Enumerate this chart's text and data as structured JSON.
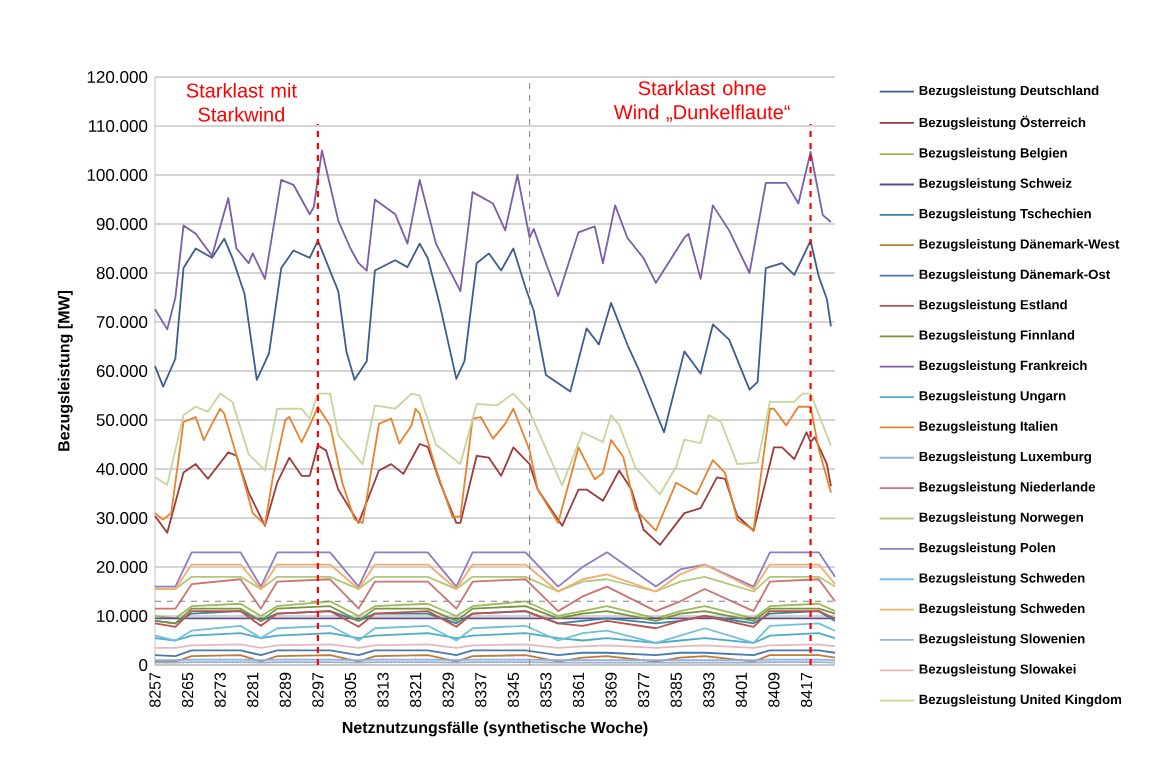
{
  "chart_data": {
    "type": "line",
    "xlabel": "Netznutzungsfälle (synthetische Woche)",
    "ylabel": "Bezugsleistung [MW]",
    "xlim": [
      8257,
      8424
    ],
    "xticks": [
      8257,
      8265,
      8273,
      8281,
      8289,
      8297,
      8305,
      8313,
      8321,
      8329,
      8337,
      8345,
      8353,
      8361,
      8369,
      8377,
      8385,
      8393,
      8401,
      8409,
      8417
    ],
    "ylim": [
      0,
      120000
    ],
    "yticks": [
      {
        "value": 0,
        "label": "0"
      },
      {
        "value": 10000,
        "label": "10.000"
      },
      {
        "value": 20000,
        "label": "20.000"
      },
      {
        "value": 30000,
        "label": "30.000"
      },
      {
        "value": 40000,
        "label": "40.000"
      },
      {
        "value": 50000,
        "label": "50.000"
      },
      {
        "value": 60000,
        "label": "60.000"
      },
      {
        "value": 70000,
        "label": "70.000"
      },
      {
        "value": 80000,
        "label": "80.000"
      },
      {
        "value": 90000,
        "label": "90.000"
      },
      {
        "value": 100000,
        "label": "100.000"
      },
      {
        "value": 110000,
        "label": "110.000"
      },
      {
        "value": 120000,
        "label": "120.000"
      }
    ],
    "grid": "y",
    "legend": "right",
    "x": [
      8257,
      8262,
      8266,
      8278,
      8283,
      8287,
      8300,
      8307,
      8311,
      8324,
      8331,
      8335,
      8348,
      8356,
      8362,
      8368,
      8380,
      8386,
      8392,
      8404,
      8408,
      8420,
      8424
    ],
    "series": [
      {
        "name": "Bezugsleistung Deutschland",
        "color": "#3b5e8c",
        "x": [
          8257,
          8259,
          8262,
          8264,
          8267,
          8271,
          8274,
          8276,
          8279,
          8282,
          8285,
          8288,
          8291,
          8295,
          8297,
          8302,
          8304,
          8306,
          8309,
          8311,
          8316,
          8319,
          8322,
          8324,
          8327,
          8331,
          8333,
          8336,
          8339,
          8342,
          8345,
          8348,
          8350,
          8353,
          8359,
          8363,
          8366,
          8369,
          8373,
          8376,
          8382,
          8387,
          8391,
          8394,
          8398,
          8403,
          8405,
          8407,
          8411,
          8414,
          8418,
          8420,
          8422,
          8423
        ],
        "values": [
          61000,
          56800,
          62500,
          81000,
          85000,
          83100,
          87000,
          83100,
          75700,
          58200,
          63600,
          81000,
          84600,
          83100,
          86600,
          76300,
          64000,
          58200,
          62000,
          80500,
          82600,
          81200,
          86000,
          83000,
          73300,
          58400,
          62000,
          82000,
          84000,
          80500,
          85000,
          77000,
          72300,
          59200,
          55800,
          68700,
          65400,
          73900,
          65400,
          59900,
          47500,
          64000,
          59500,
          69500,
          66400,
          56200,
          57800,
          81000,
          82000,
          79600,
          86600,
          79300,
          74700,
          69100
        ]
      },
      {
        "name": "Bezugsleistung Österreich",
        "color": "#9b3b3a",
        "x": [
          8257,
          8260,
          8264,
          8267,
          8270,
          8275,
          8277,
          8280,
          8284,
          8287,
          8290,
          8293,
          8295,
          8297,
          8299,
          8302,
          8307,
          8312,
          8315,
          8318,
          8322,
          8324,
          8327,
          8331,
          8332,
          8336,
          8339,
          8342,
          8345,
          8349,
          8351,
          8357,
          8361,
          8363,
          8367,
          8371,
          8374,
          8377,
          8381,
          8387,
          8391,
          8395,
          8397,
          8400,
          8404,
          8409,
          8411,
          8414,
          8417,
          8418,
          8419,
          8422,
          8423
        ],
        "values": [
          30400,
          27000,
          39300,
          41000,
          38000,
          43400,
          42700,
          35200,
          28400,
          37200,
          42300,
          38600,
          38600,
          44800,
          43800,
          35800,
          29000,
          39700,
          41000,
          39000,
          45100,
          44500,
          37200,
          29000,
          29000,
          42700,
          42300,
          38600,
          44400,
          41000,
          35800,
          28400,
          35800,
          35800,
          33500,
          39700,
          35800,
          27600,
          24500,
          31000,
          32000,
          38300,
          38000,
          30400,
          27400,
          44400,
          44400,
          42000,
          47500,
          45500,
          46500,
          41000,
          36500
        ]
      },
      {
        "name": "Bezugsleistung Belgien",
        "color": "#9bbb59",
        "values": [
          10000,
          9500,
          12000,
          12500,
          10000,
          12000,
          13000,
          10000,
          12000,
          12500,
          10000,
          12000,
          13000,
          10000,
          11000,
          12000,
          9500,
          11000,
          12000,
          9500,
          12000,
          12500,
          11000
        ]
      },
      {
        "name": "Bezugsleistung Schweiz",
        "color": "#5f4b8b",
        "values": [
          9500,
          9500,
          9500,
          9500,
          9500,
          9500,
          9500,
          9500,
          9500,
          9500,
          9500,
          9500,
          9500,
          9500,
          9500,
          9500,
          9500,
          9500,
          9500,
          9500,
          9500,
          9500,
          9500
        ]
      },
      {
        "name": "Bezugsleistung Tschechien",
        "color": "#31859c",
        "values": [
          9000,
          8500,
          10500,
          11000,
          9000,
          10500,
          11000,
          9000,
          10500,
          10500,
          8500,
          10500,
          11000,
          8500,
          9000,
          9500,
          8500,
          9000,
          10000,
          8500,
          10500,
          11000,
          9000
        ]
      },
      {
        "name": "Bezugsleistung Dänemark-West",
        "color": "#c07a35",
        "values": [
          700,
          700,
          1800,
          2000,
          700,
          1800,
          2000,
          700,
          1800,
          2000,
          700,
          1800,
          2000,
          700,
          1500,
          1800,
          700,
          1500,
          1800,
          700,
          2000,
          2000,
          1500
        ]
      },
      {
        "name": "Bezugsleistung Dänemark-Ost",
        "color": "#4a78b0",
        "values": [
          2000,
          1800,
          3000,
          3000,
          2000,
          3000,
          3000,
          2000,
          3000,
          3000,
          2000,
          3000,
          3000,
          2000,
          2500,
          2500,
          2000,
          2500,
          2500,
          2000,
          3000,
          3000,
          2500
        ]
      },
      {
        "name": "Bezugsleistung Estland",
        "color": "#c0504d",
        "values": [
          8500,
          7800,
          11000,
          11000,
          8000,
          10500,
          11000,
          7800,
          10500,
          11000,
          7800,
          10500,
          11000,
          8500,
          8000,
          9000,
          7500,
          9000,
          10000,
          7800,
          11000,
          11000,
          9500
        ]
      },
      {
        "name": "Bezugsleistung Finnland",
        "color": "#77933c",
        "values": [
          9000,
          8500,
          11500,
          11500,
          9000,
          11500,
          12000,
          9000,
          11500,
          11500,
          9000,
          11500,
          12000,
          9500,
          10500,
          11000,
          9000,
          10500,
          11000,
          9000,
          11500,
          11500,
          10500
        ]
      },
      {
        "name": "Bezugsleistung Frankreich",
        "color": "#7a5ea8",
        "x": [
          8257,
          8260,
          8262,
          8264,
          8267,
          8271,
          8275,
          8277,
          8280,
          8281,
          8284,
          8288,
          8291,
          8295,
          8296,
          8298,
          8302,
          8305,
          8307,
          8309,
          8311,
          8316,
          8319,
          8322,
          8326,
          8332,
          8335,
          8340,
          8343,
          8346,
          8349,
          8350,
          8353,
          8356,
          8361,
          8365,
          8367,
          8370,
          8373,
          8377,
          8380,
          8387,
          8388,
          8391,
          8394,
          8398,
          8403,
          8407,
          8412,
          8415,
          8418,
          8421,
          8423
        ],
        "values": [
          72600,
          68500,
          75000,
          89700,
          88000,
          83500,
          95300,
          85000,
          82000,
          84000,
          78800,
          99000,
          98000,
          92000,
          93500,
          105000,
          90700,
          85000,
          82000,
          80500,
          95000,
          92000,
          86000,
          99000,
          86000,
          76300,
          96500,
          94200,
          88700,
          100000,
          87200,
          89000,
          82000,
          75300,
          88300,
          89500,
          82000,
          93800,
          87200,
          83000,
          78000,
          87200,
          88000,
          78800,
          93800,
          88700,
          80000,
          98400,
          98400,
          94200,
          104700,
          91800,
          90400
        ]
      },
      {
        "name": "Bezugsleistung Ungarn",
        "color": "#4bacc6",
        "values": [
          5500,
          5000,
          6000,
          6500,
          5500,
          6000,
          6500,
          5500,
          6000,
          6500,
          5500,
          6000,
          6500,
          5500,
          5000,
          5500,
          4500,
          5000,
          5500,
          4500,
          6000,
          6500,
          5500
        ]
      },
      {
        "name": "Bezugsleistung Italien",
        "color": "#e8822e",
        "x": [
          8257,
          8259,
          8261,
          8264,
          8267,
          8269,
          8271,
          8273,
          8274,
          8278,
          8281,
          8284,
          8286,
          8289,
          8290,
          8293,
          8295,
          8297,
          8300,
          8303,
          8306,
          8308,
          8312,
          8315,
          8317,
          8320,
          8321,
          8322,
          8326,
          8330,
          8332,
          8335,
          8337,
          8340,
          8343,
          8345,
          8349,
          8351,
          8356,
          8361,
          8365,
          8367,
          8369,
          8372,
          8375,
          8380,
          8385,
          8390,
          8394,
          8397,
          8400,
          8404,
          8408,
          8409,
          8412,
          8415,
          8418,
          8420,
          8423
        ],
        "values": [
          31000,
          29700,
          31000,
          49600,
          50600,
          45900,
          49200,
          52300,
          51300,
          40000,
          31000,
          28600,
          38600,
          50000,
          50600,
          45500,
          48900,
          52700,
          48900,
          37200,
          29700,
          29000,
          49200,
          50300,
          45200,
          48900,
          52300,
          51300,
          40000,
          30300,
          30300,
          50300,
          50600,
          46200,
          49200,
          52300,
          43800,
          35800,
          29000,
          44400,
          37900,
          39200,
          45900,
          42500,
          31700,
          27400,
          37200,
          34800,
          41800,
          39200,
          29600,
          27600,
          52300,
          52300,
          48900,
          52700,
          52700,
          44100,
          35200
        ]
      },
      {
        "name": "Bezugsleistung Luxemburg",
        "color": "#8db3e2",
        "values": [
          1000,
          1000,
          1100,
          1100,
          1000,
          1100,
          1100,
          1000,
          1100,
          1100,
          1000,
          1100,
          1100,
          1000,
          1000,
          1000,
          1000,
          1000,
          1000,
          1000,
          1100,
          1100,
          1000
        ]
      },
      {
        "name": "Bezugsleistung Niederlande",
        "color": "#cd7371",
        "values": [
          11500,
          11500,
          16500,
          17500,
          11500,
          17000,
          17500,
          11500,
          17000,
          17000,
          11500,
          17000,
          17500,
          11000,
          14000,
          16000,
          11000,
          13000,
          15500,
          11000,
          17000,
          17500,
          13000
        ]
      },
      {
        "name": "Bezugsleistung Norwegen",
        "color": "#afc97a",
        "values": [
          15500,
          15500,
          18000,
          18000,
          15500,
          18000,
          18000,
          15500,
          18000,
          18000,
          15500,
          18000,
          18000,
          15000,
          17000,
          17500,
          15000,
          17000,
          18000,
          15000,
          18000,
          18000,
          16000
        ]
      },
      {
        "name": "Bezugsleistung Polen",
        "color": "#8f7cc0",
        "values": [
          16000,
          16000,
          23000,
          23000,
          16000,
          23000,
          23000,
          16000,
          23000,
          23000,
          16000,
          23000,
          23000,
          16000,
          20000,
          23000,
          16000,
          19500,
          20500,
          16000,
          23000,
          23000,
          18000
        ]
      },
      {
        "name": "Bezugsleistung Schweden",
        "color": "#6fc0d8",
        "values": [
          6000,
          5000,
          7000,
          8000,
          5500,
          7500,
          8000,
          5000,
          7500,
          8000,
          5000,
          7500,
          8000,
          5000,
          6500,
          7000,
          4500,
          6000,
          7500,
          4500,
          8000,
          8500,
          7000
        ]
      },
      {
        "name": "Bezugsleistung Schweden",
        "color": "#f9ab6b",
        "values": [
          15500,
          15500,
          20500,
          20500,
          15500,
          20500,
          20500,
          15500,
          20500,
          20500,
          15500,
          20500,
          20500,
          15000,
          17500,
          18500,
          15000,
          18500,
          20500,
          15500,
          20500,
          20500,
          16500
        ]
      },
      {
        "name": "Bezugsleistung Slowenien",
        "color": "#9ab3d6",
        "values": [
          500,
          500,
          600,
          600,
          500,
          600,
          600,
          500,
          600,
          600,
          500,
          600,
          600,
          500,
          500,
          500,
          500,
          500,
          500,
          500,
          600,
          600,
          500
        ]
      },
      {
        "name": "Bezugsleistung Slowakei",
        "color": "#e6b9b8",
        "values": [
          3500,
          3500,
          4000,
          4200,
          3500,
          4000,
          4200,
          3500,
          4000,
          4200,
          3500,
          4000,
          4200,
          3500,
          3800,
          4000,
          3500,
          3800,
          4000,
          3500,
          4000,
          4200,
          3800
        ]
      },
      {
        "name": "Bezugsleistung United Kingdom",
        "color": "#c3d69b",
        "x": [
          8257,
          8260,
          8264,
          8267,
          8270,
          8273,
          8276,
          8280,
          8284,
          8287,
          8293,
          8295,
          8297,
          8300,
          8302,
          8308,
          8311,
          8316,
          8320,
          8322,
          8326,
          8332,
          8336,
          8341,
          8345,
          8349,
          8357,
          8362,
          8367,
          8369,
          8371,
          8375,
          8381,
          8385,
          8387,
          8391,
          8393,
          8396,
          8400,
          8405,
          8408,
          8414,
          8416,
          8418,
          8421,
          8423
        ],
        "values": [
          38300,
          36800,
          51000,
          52700,
          51700,
          55400,
          53700,
          43000,
          39700,
          52300,
          52300,
          50300,
          55400,
          55400,
          46900,
          41000,
          53000,
          52300,
          55400,
          55000,
          45000,
          41000,
          53300,
          53000,
          55400,
          51700,
          36600,
          47500,
          45500,
          51000,
          49000,
          40300,
          34800,
          40500,
          46000,
          45300,
          51000,
          49600,
          41000,
          41300,
          53700,
          53700,
          55400,
          55400,
          49000,
          44800
        ]
      }
    ],
    "ref_lines": [
      {
        "axis": "x",
        "value": 8297,
        "label": "Starklast mit Starkwind",
        "color": "#ff0000",
        "line_style": "dashed"
      },
      {
        "axis": "x",
        "value": 8418,
        "label": "Starklast ohne Wind „Dunkelflaute“",
        "color": "#ff0000",
        "line_style": "dashed"
      },
      {
        "axis": "x",
        "value": 8349,
        "color": "#808080",
        "line_style": "dashed"
      },
      {
        "axis": "y",
        "value": 13000,
        "color": "#808080",
        "line_style": "dashed"
      }
    ]
  }
}
